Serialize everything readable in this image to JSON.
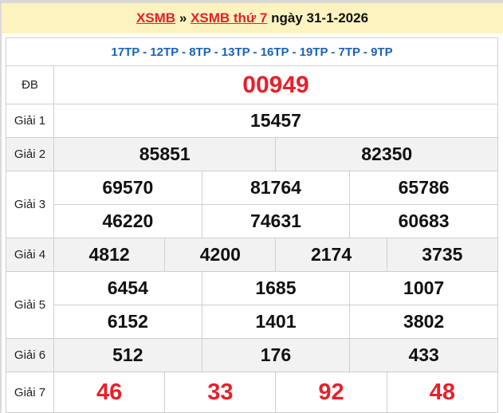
{
  "header": {
    "link1": "XSMB",
    "sep": "»",
    "link2": "XSMB thứ 7",
    "date_text": "ngày 31-1-2026"
  },
  "provinces": "17TP - 12TP - 8TP - 13TP - 16TP - 19TP - 7TP - 9TP",
  "colors": {
    "accent_red": "#e8202a",
    "province_blue": "#1a63b5",
    "header_bg": "#fdf3c0"
  },
  "prizes": {
    "db": {
      "label": "ĐB",
      "numbers": [
        "00949"
      ]
    },
    "g1": {
      "label": "Giải 1",
      "numbers": [
        "15457"
      ]
    },
    "g2": {
      "label": "Giải 2",
      "numbers": [
        "85851",
        "82350"
      ]
    },
    "g3": {
      "label": "Giải 3",
      "numbers": [
        "69570",
        "81764",
        "65786",
        "46220",
        "74631",
        "60683"
      ]
    },
    "g4": {
      "label": "Giải 4",
      "numbers": [
        "4812",
        "4200",
        "2174",
        "3735"
      ]
    },
    "g5": {
      "label": "Giải 5",
      "numbers": [
        "6454",
        "1685",
        "1007",
        "6152",
        "1401",
        "3802"
      ]
    },
    "g6": {
      "label": "Giải 6",
      "numbers": [
        "512",
        "176",
        "433"
      ]
    },
    "g7": {
      "label": "Giải 7",
      "numbers": [
        "46",
        "33",
        "92",
        "48"
      ]
    }
  }
}
